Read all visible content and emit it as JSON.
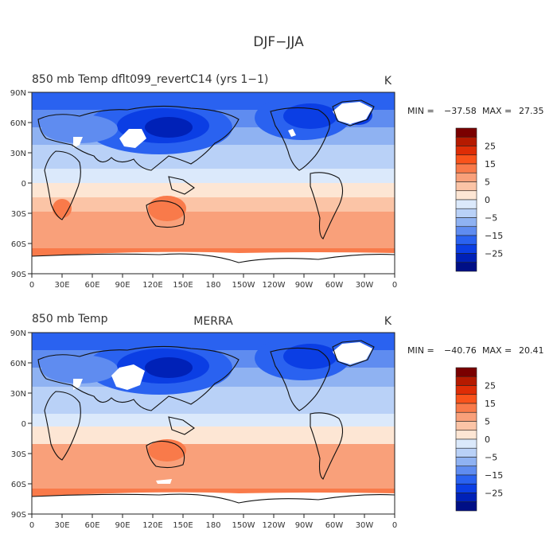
{
  "title": "DJF−JJA",
  "chart_data": [
    {
      "type": "heatmap",
      "variable": "850 mb Temp",
      "title_left": "850 mb Temp dflt099_revertC14 (yrs 1−1)",
      "title_center": "",
      "units": "K",
      "stats": {
        "min": -37.58,
        "max": 27.35,
        "min_label": "MIN =",
        "max_label": "MAX =",
        "min_text": "−37.58",
        "max_text": "27.35"
      },
      "x_ticks": [
        "0",
        "30E",
        "60E",
        "90E",
        "120E",
        "150E",
        "180",
        "150W",
        "120W",
        "90W",
        "60W",
        "30W",
        "0"
      ],
      "y_ticks": [
        "90N",
        "60N",
        "30N",
        "0",
        "30S",
        "60S",
        "90S"
      ],
      "xlim": [
        0,
        360
      ],
      "ylim": [
        -90,
        90
      ]
    },
    {
      "type": "heatmap",
      "variable": "850 mb Temp",
      "title_left": "850 mb Temp",
      "title_center": "MERRA",
      "units": "K",
      "stats": {
        "min": -40.76,
        "max": 20.41,
        "min_label": "MIN =",
        "max_label": "MAX =",
        "min_text": "−40.76",
        "max_text": "20.41"
      },
      "x_ticks": [
        "0",
        "30E",
        "60E",
        "90E",
        "120E",
        "150E",
        "180",
        "150W",
        "120W",
        "90W",
        "60W",
        "30W",
        "0"
      ],
      "y_ticks": [
        "90N",
        "60N",
        "30N",
        "0",
        "30S",
        "60S",
        "90S"
      ],
      "xlim": [
        0,
        360
      ],
      "ylim": [
        -90,
        90
      ]
    }
  ],
  "colorbar": {
    "levels": [
      -30,
      -25,
      -20,
      -15,
      -10,
      -5,
      -2,
      2,
      5,
      10,
      15,
      20,
      25,
      30
    ],
    "labels": [
      "25",
      "15",
      "5",
      "0",
      "−5",
      "−15",
      "−25"
    ],
    "colors": [
      "#7a0000",
      "#b51a00",
      "#de2d06",
      "#f9531b",
      "#f97a4a",
      "#f9a07a",
      "#fbc4a6",
      "#fde6d4",
      "#dbe9fb",
      "#b9d1f7",
      "#8fb2f2",
      "#5f8cf0",
      "#2a62f0",
      "#0b3ee4",
      "#0021b7",
      "#000f86"
    ]
  }
}
